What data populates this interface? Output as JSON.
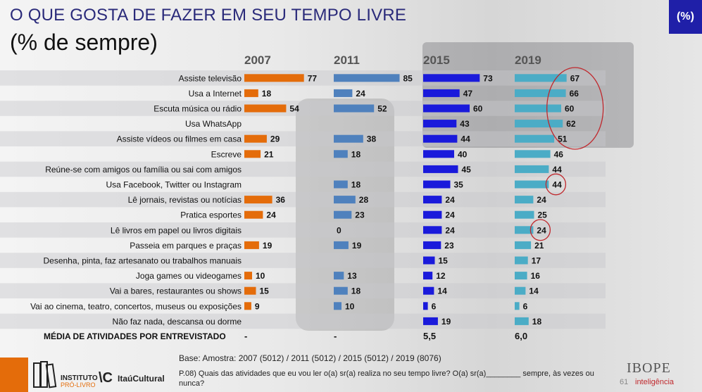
{
  "header": {
    "title": "O QUE GOSTA DE FAZER EM SEU TEMPO LIVRE",
    "subtitle": "(% de sempre)",
    "badge": "(%)"
  },
  "chart_data": {
    "type": "bar",
    "orientation": "horizontal",
    "colors": {
      "2007": "#e46c0a",
      "2011": "#4f81bd",
      "2015": "#1a1adb",
      "2019": "#4bacc6"
    },
    "categories": [
      "Assiste televisão",
      "Usa a Internet",
      "Escuta música ou rádio",
      "Usa WhatsApp",
      "Assiste vídeos ou filmes em casa",
      "Escreve",
      "Reúne-se com amigos ou família ou sai com amigos",
      "Usa Facebook, Twitter  ou Instagram",
      "Lê jornais, revistas ou notícias",
      "Pratica esportes",
      "Lê livros em papel ou livros digitais",
      "Passeia em parques e praças",
      "Desenha, pinta, faz artesanato ou trabalhos manuais",
      "Joga games ou videogames",
      "Vai a bares, restaurantes ou shows",
      "Vai ao cinema, teatro, concertos, museus ou exposições",
      "Não faz nada, descansa ou dorme"
    ],
    "series": [
      {
        "name": "2007",
        "values": [
          77,
          18,
          54,
          null,
          29,
          21,
          null,
          null,
          36,
          24,
          null,
          19,
          null,
          10,
          15,
          9,
          null
        ]
      },
      {
        "name": "2011",
        "values": [
          85,
          24,
          52,
          null,
          38,
          18,
          null,
          18,
          28,
          23,
          0,
          19,
          null,
          13,
          18,
          10,
          null
        ]
      },
      {
        "name": "2015",
        "values": [
          73,
          47,
          60,
          43,
          44,
          40,
          45,
          35,
          24,
          24,
          24,
          23,
          15,
          12,
          14,
          6,
          19
        ]
      },
      {
        "name": "2019",
        "values": [
          67,
          66,
          60,
          62,
          51,
          46,
          44,
          44,
          24,
          25,
          24,
          21,
          17,
          16,
          14,
          6,
          18
        ]
      }
    ],
    "summary_row": {
      "label": "MÉDIA DE ATIVIDADES POR ENTREVISTADO",
      "values": [
        "-",
        "-",
        "5,5",
        "6,0"
      ]
    },
    "highlights": [
      {
        "series": "2019",
        "categories": [
          "Assiste televisão",
          "Usa a Internet",
          "Escuta música ou rádio",
          "Usa WhatsApp",
          "Assiste vídeos ou filmes em casa"
        ]
      },
      {
        "series": "2019",
        "categories": [
          "Usa Facebook, Twitter  ou Instagram"
        ]
      },
      {
        "series": "2019",
        "categories": [
          "Lê livros em papel ou livros digitais"
        ]
      }
    ]
  },
  "footer": {
    "base": "Base: Amostra: 2007 (5012) / 2011 (5012) / 2015 (5012) / 2019 (8076)",
    "question": "P.08) Quais das atividades que eu vou ler o(a) sr(a) realiza no seu tempo livre? O(a) sr(a)________ sempre, às vezes ou nunca?",
    "logo1_line1": "INSTITUTO",
    "logo1_line2": "PRÓ-LIVRO",
    "logo2_mark": "\\C",
    "logo2": "ItaúCultural",
    "page": "61",
    "brand": "IBOPE",
    "brand_sub": "inteligência"
  }
}
